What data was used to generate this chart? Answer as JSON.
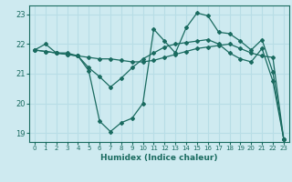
{
  "xlabel": "Humidex (Indice chaleur)",
  "bg_color": "#ceeaf0",
  "grid_color": "#b8dde6",
  "line_color": "#1a6b60",
  "xlim": [
    -0.5,
    23.5
  ],
  "ylim": [
    18.7,
    23.3
  ],
  "yticks": [
    19,
    20,
    21,
    22,
    23
  ],
  "xticks": [
    0,
    1,
    2,
    3,
    4,
    5,
    6,
    7,
    8,
    9,
    10,
    11,
    12,
    13,
    14,
    15,
    16,
    17,
    18,
    19,
    20,
    21,
    22,
    23
  ],
  "series1": [
    21.8,
    22.0,
    21.7,
    21.7,
    21.6,
    21.1,
    19.4,
    19.05,
    19.35,
    19.5,
    20.0,
    22.5,
    22.1,
    21.7,
    22.55,
    23.05,
    22.95,
    22.4,
    22.35,
    22.1,
    21.8,
    22.15,
    21.05,
    18.8
  ],
  "series2": [
    21.8,
    21.75,
    21.7,
    21.65,
    21.6,
    21.55,
    21.5,
    21.5,
    21.45,
    21.4,
    21.4,
    21.45,
    21.55,
    21.65,
    21.75,
    21.85,
    21.9,
    21.95,
    22.0,
    21.85,
    21.7,
    21.6,
    21.55,
    18.8
  ],
  "series3": [
    21.8,
    21.75,
    21.7,
    21.65,
    21.6,
    21.2,
    20.9,
    20.55,
    20.85,
    21.2,
    21.5,
    21.7,
    21.9,
    22.0,
    22.05,
    22.1,
    22.15,
    22.0,
    21.7,
    21.5,
    21.4,
    21.85,
    20.75,
    18.8
  ]
}
